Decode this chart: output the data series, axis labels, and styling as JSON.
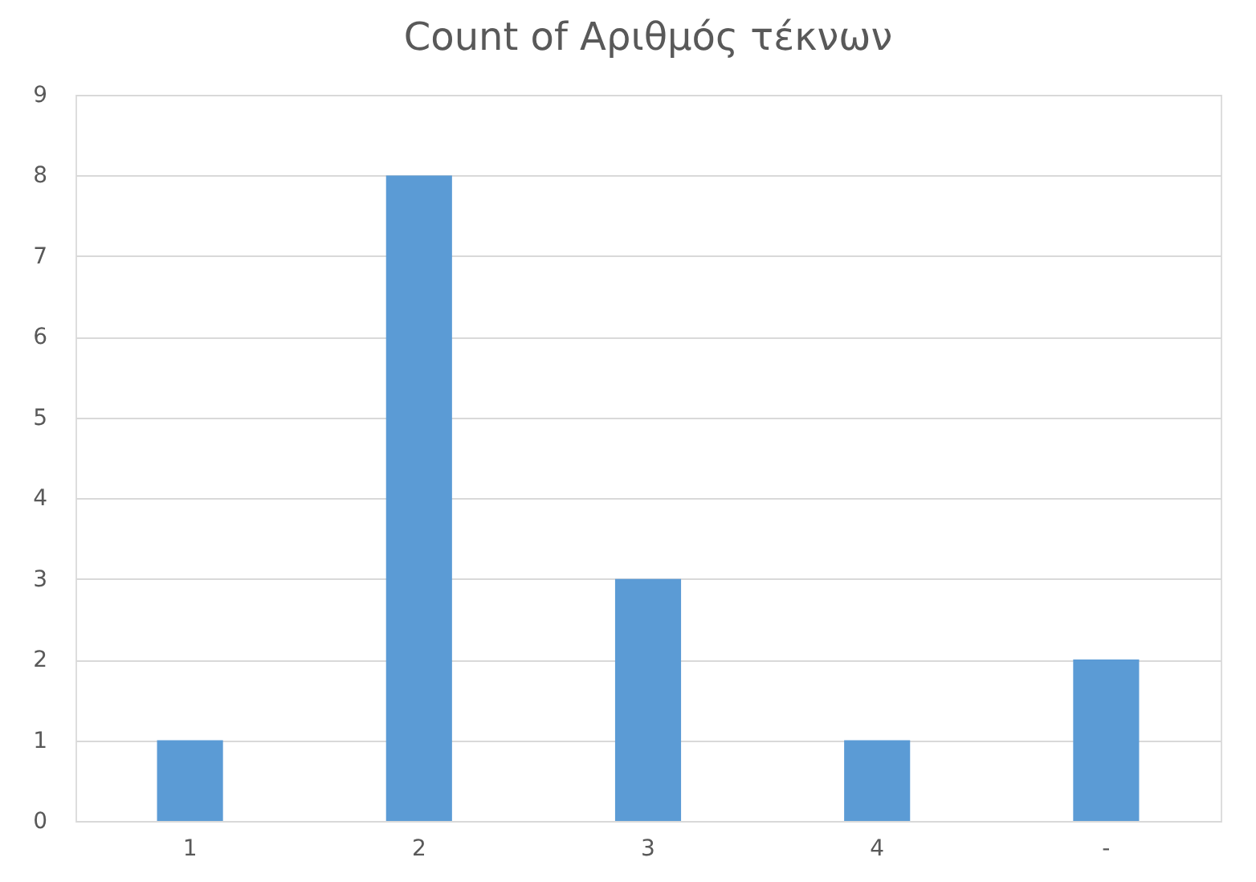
{
  "chart_data": {
    "type": "bar",
    "title": "Count of Αριθμός τέκνων",
    "categories": [
      "1",
      "2",
      "3",
      "4",
      "-"
    ],
    "values": [
      1,
      8,
      3,
      1,
      2
    ],
    "color": "#5b9bd5",
    "ylim": [
      0,
      9
    ],
    "yticks": [
      0,
      1,
      2,
      3,
      4,
      5,
      6,
      7,
      8,
      9
    ],
    "grid": "y"
  }
}
